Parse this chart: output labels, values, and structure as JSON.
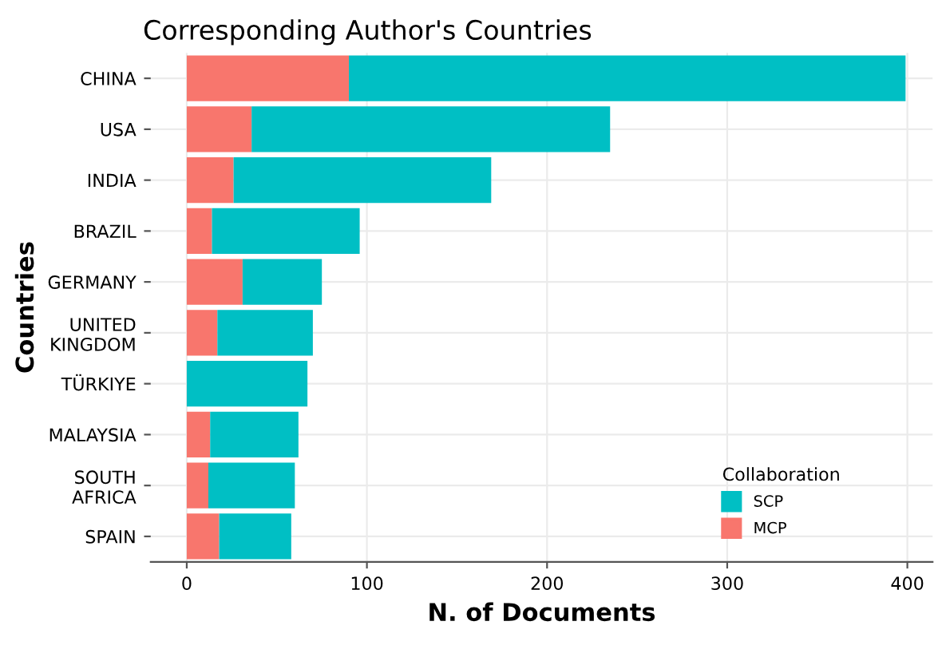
{
  "chart_data": {
    "type": "bar",
    "orientation": "horizontal",
    "stacked": true,
    "title": "Corresponding Author's Countries",
    "xlabel": "N. of Documents",
    "ylabel": "Countries",
    "categories": [
      "CHINA",
      "USA",
      "INDIA",
      "BRAZIL",
      "GERMANY",
      "UNITED\nKINGDOM",
      "TÜRKIYE",
      "MALAYSIA",
      "SOUTH\nAFRICA",
      "SPAIN"
    ],
    "series": [
      {
        "name": "MCP",
        "color": "#f8766d",
        "values": [
          90,
          36,
          26,
          14,
          31,
          17,
          0,
          13,
          12,
          18
        ]
      },
      {
        "name": "SCP",
        "color": "#00bfc4",
        "values": [
          309,
          199,
          143,
          82,
          44,
          53,
          67,
          49,
          48,
          40
        ]
      }
    ],
    "xlim": [
      -20,
      414
    ],
    "xticks": [
      0,
      100,
      200,
      300,
      400
    ],
    "legend_title": "Collaboration",
    "legend": "bottom right",
    "grid": true
  }
}
